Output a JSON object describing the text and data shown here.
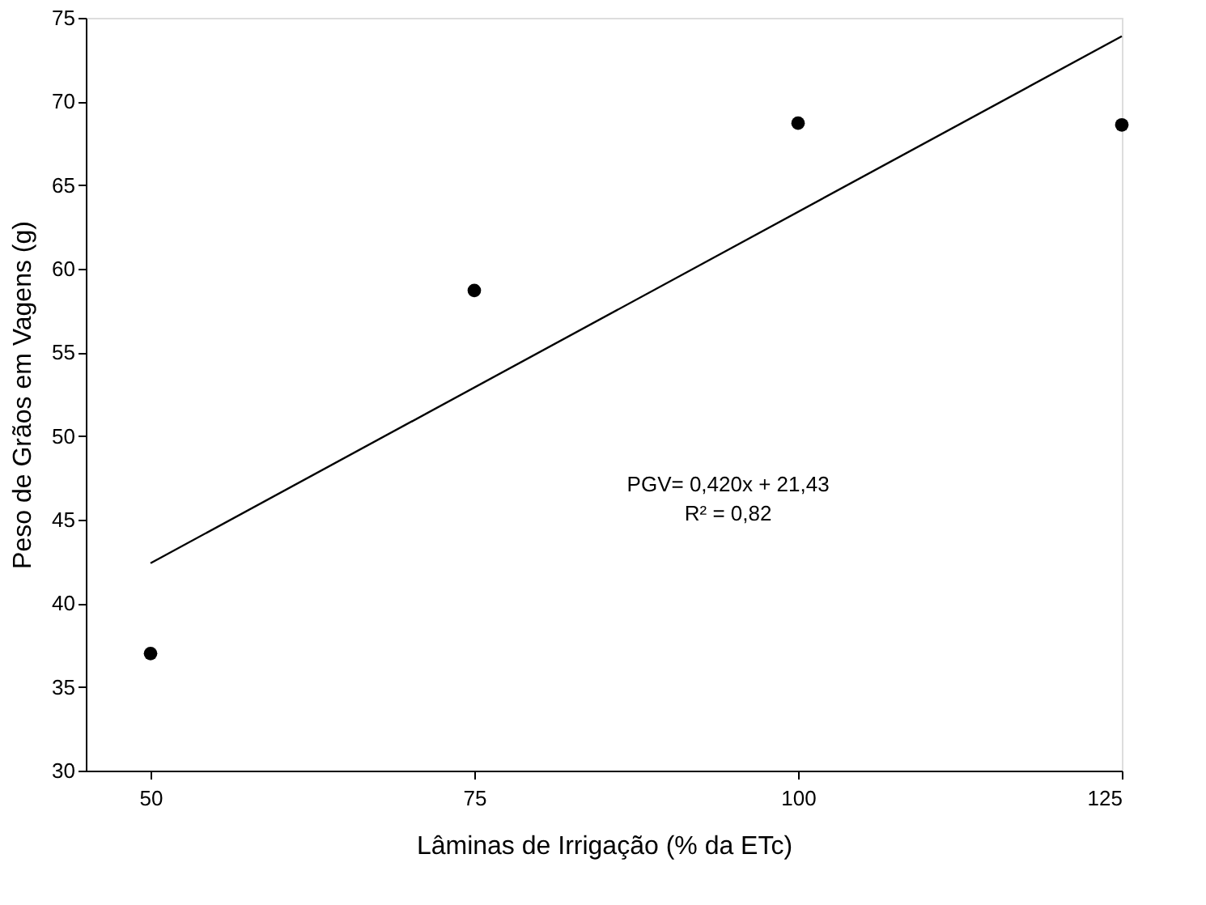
{
  "chart_data": {
    "type": "scatter",
    "xlabel": "Lâminas de Irrigação (% da ETc)",
    "ylabel": "Peso de Grãos em Vagens (g)",
    "xlim": [
      45,
      125
    ],
    "xticks": [
      50,
      75,
      100,
      125
    ],
    "ylim": [
      30,
      75
    ],
    "yticks": [
      30,
      35,
      40,
      45,
      50,
      55,
      60,
      65,
      70,
      75
    ],
    "marker": "circle",
    "series": [
      {
        "color": "#000000",
        "x": [
          50,
          75,
          100,
          125
        ],
        "values": [
          37.0,
          58.7,
          68.7,
          68.6
        ]
      },
      {
        "type": "line",
        "color": "#000000",
        "x": [
          50,
          125
        ],
        "values": [
          42.4,
          73.9
        ],
        "marker": "none"
      }
    ],
    "annotations": [
      "PGV= 0,420x + 21,43",
      "R² = 0,82"
    ]
  }
}
